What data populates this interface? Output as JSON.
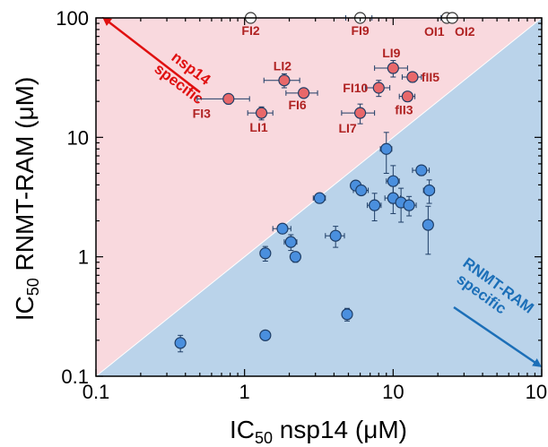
{
  "chart_data": {
    "type": "scatter",
    "xscale": "log",
    "yscale": "log",
    "xlim": [
      0.1,
      100
    ],
    "ylim": [
      0.1,
      100
    ],
    "x_ticks": [
      "0.1",
      "1",
      "10",
      "100"
    ],
    "y_ticks": [
      "0.1",
      "1",
      "10",
      "100"
    ],
    "xlabel": {
      "prefix": "IC",
      "sub": "50",
      "rest": " nsp14 (μM)"
    },
    "ylabel": {
      "prefix": "IC",
      "sub": "50",
      "rest": " RNMT-RAM (μM)"
    },
    "grid": false,
    "diagonal": "y = x",
    "regions": {
      "upper": {
        "label_line1": "nsp14",
        "label_line2": "specific",
        "color": "#f9d9de"
      },
      "lower": {
        "label_line1": "RNMT-RAM",
        "label_line2": "specific",
        "color": "#bad3ea"
      }
    },
    "colors": {
      "red_marker": "#e8686a",
      "red_label": "#b02222",
      "blue_marker": "#4a8fde",
      "marker_edge": "#1e3d66"
    },
    "series": [
      {
        "color": "#e8686a",
        "points": [
          {
            "label": "FI2",
            "x": 1.1,
            "y": 100,
            "xerr": 0,
            "yerr": 0,
            "open": true
          },
          {
            "label": "FI9",
            "x": 6.0,
            "y": 100,
            "xerr": 1.2,
            "yerr": 0,
            "open": true
          },
          {
            "label": "OI1",
            "x": 23,
            "y": 100,
            "xerr": 2,
            "yerr": 0,
            "open": true
          },
          {
            "label": "OI2",
            "x": 25,
            "y": 100,
            "xerr": 2,
            "yerr": 0,
            "open": true
          },
          {
            "label": "LI2",
            "x": 1.85,
            "y": 30,
            "xerr": 0.5,
            "yerr": 4,
            "open": false
          },
          {
            "label": "FI6",
            "x": 2.5,
            "y": 23.5,
            "xerr": 0.6,
            "yerr": 2,
            "open": false
          },
          {
            "label": "FI3",
            "x": 0.78,
            "y": 21,
            "xerr": 0.3,
            "yerr": 2,
            "open": false
          },
          {
            "label": "LI1",
            "x": 1.3,
            "y": 16,
            "xerr": 0.25,
            "yerr": 2,
            "open": false
          },
          {
            "label": "LI9",
            "x": 10,
            "y": 38,
            "xerr": 2.5,
            "yerr": 6,
            "open": false
          },
          {
            "label": "fII5",
            "x": 13.5,
            "y": 32,
            "xerr": 2,
            "yerr": 3,
            "open": false
          },
          {
            "label": "FI10",
            "x": 8.0,
            "y": 26,
            "xerr": 1.5,
            "yerr": 4,
            "open": false
          },
          {
            "label": "fII3",
            "x": 12.5,
            "y": 22,
            "xerr": 1.5,
            "yerr": 2,
            "open": false
          },
          {
            "label": "LI7",
            "x": 6.0,
            "y": 16,
            "xerr": 1.5,
            "yerr": 3,
            "open": false
          }
        ]
      },
      {
        "color": "#4a8fde",
        "points": [
          {
            "x": 0.37,
            "y": 0.19,
            "xerr": 0.02,
            "yerr": 0.03
          },
          {
            "x": 1.38,
            "y": 0.22,
            "xerr": 0.08,
            "yerr": 0.01
          },
          {
            "x": 4.9,
            "y": 0.33,
            "xerr": 0.25,
            "yerr": 0.04
          },
          {
            "x": 1.38,
            "y": 1.07,
            "xerr": 0.1,
            "yerr": 0.15
          },
          {
            "x": 2.2,
            "y": 1.0,
            "xerr": 0.15,
            "yerr": 0.1
          },
          {
            "x": 2.05,
            "y": 1.33,
            "xerr": 0.2,
            "yerr": 0.2
          },
          {
            "x": 1.8,
            "y": 1.72,
            "xerr": 0.25,
            "yerr": 0.15
          },
          {
            "x": 4.1,
            "y": 1.5,
            "xerr": 0.6,
            "yerr": 0.3
          },
          {
            "x": 3.2,
            "y": 3.1,
            "xerr": 0.3,
            "yerr": 0.2
          },
          {
            "x": 5.6,
            "y": 3.95,
            "xerr": 0.4,
            "yerr": 0.3
          },
          {
            "x": 6.1,
            "y": 3.6,
            "xerr": 0.7,
            "yerr": 0.3
          },
          {
            "x": 7.5,
            "y": 2.7,
            "xerr": 0.8,
            "yerr": 0.7
          },
          {
            "x": 9.0,
            "y": 8.0,
            "xerr": 0.8,
            "yerr": 3
          },
          {
            "x": 10,
            "y": 4.3,
            "xerr": 1,
            "yerr": 1.5
          },
          {
            "x": 10,
            "y": 3.1,
            "xerr": 1.2,
            "yerr": 0.8
          },
          {
            "x": 11.3,
            "y": 2.85,
            "xerr": 1.3,
            "yerr": 0.9
          },
          {
            "x": 12.8,
            "y": 2.7,
            "xerr": 1.5,
            "yerr": 0.5
          },
          {
            "x": 15.5,
            "y": 5.3,
            "xerr": 2,
            "yerr": 0.5
          },
          {
            "x": 17.5,
            "y": 3.6,
            "xerr": 1.5,
            "yerr": 0.8
          },
          {
            "x": 17.2,
            "y": 1.85,
            "xerr": 1,
            "yerr": 0.8
          }
        ]
      }
    ]
  }
}
